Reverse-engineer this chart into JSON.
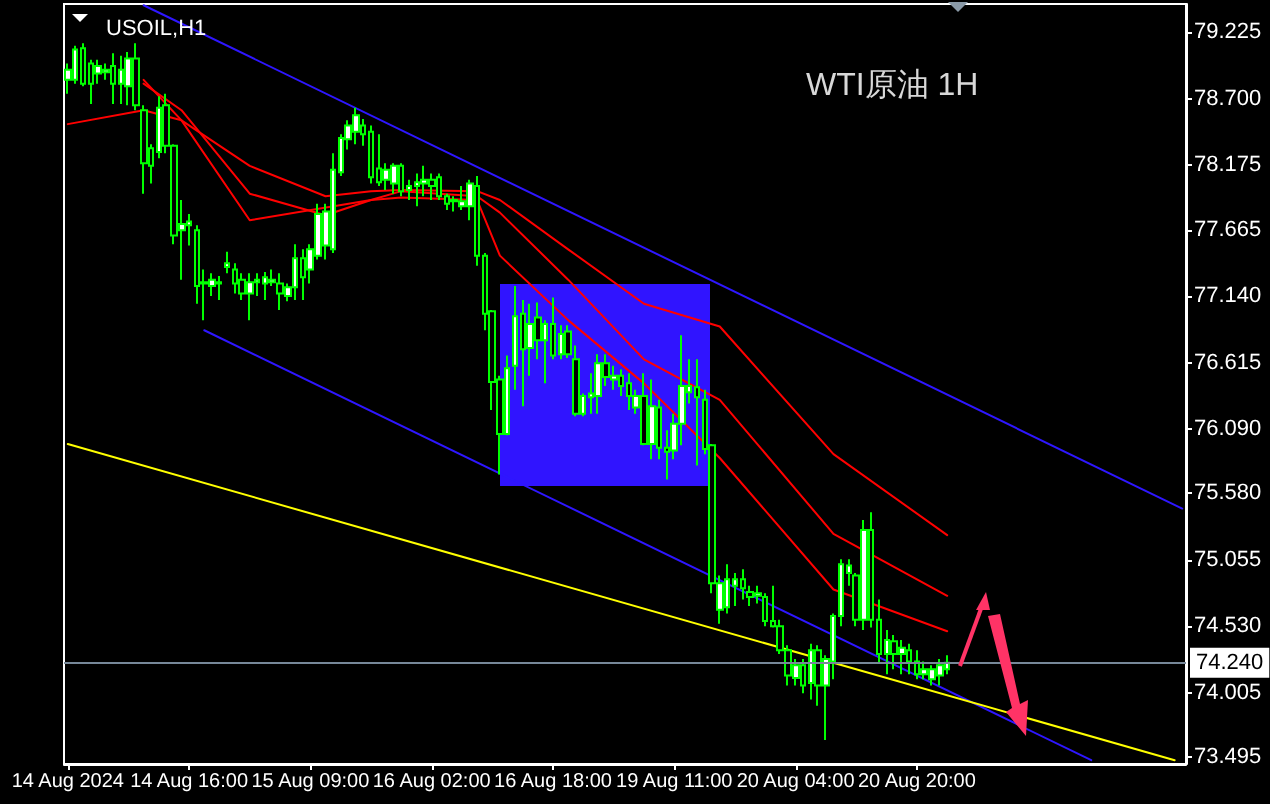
{
  "chart_data": {
    "type": "candlestick",
    "title": "WTI原油 1H",
    "subtitle": "USOIL,H1",
    "color": "#00ff00",
    "ylim": [
      73.44,
      79.45
    ],
    "categories": [
      "14 Aug 2024",
      null,
      null,
      null,
      null,
      null,
      null,
      null,
      null,
      null,
      null,
      null,
      null,
      null,
      null,
      null,
      "14 Aug 16:00",
      null,
      null,
      null,
      null,
      null,
      null,
      null,
      null,
      null,
      null,
      null,
      null,
      null,
      null,
      null,
      "15 Aug 09:00",
      null,
      null,
      null,
      null,
      null,
      null,
      null,
      null,
      null,
      null,
      null,
      null,
      null,
      null,
      null,
      "16 Aug 02:00",
      null,
      null,
      null,
      null,
      null,
      null,
      null,
      null,
      null,
      null,
      null,
      null,
      null,
      null,
      null,
      "16 Aug 18:00",
      null,
      null,
      null,
      null,
      null,
      null,
      null,
      null,
      null,
      null,
      null,
      null,
      null,
      null,
      null,
      "19 Aug 11:00",
      null,
      null,
      null,
      null,
      null,
      null,
      null,
      null,
      null,
      null,
      null,
      null,
      null,
      null,
      null,
      "20 Aug 04:00",
      null,
      null,
      null,
      null,
      null,
      null,
      null,
      null,
      null,
      null,
      null,
      null,
      null,
      null,
      null,
      "20 Aug 20:00",
      null,
      null,
      null,
      null,
      null,
      null,
      null,
      null,
      null,
      null,
      null,
      null,
      null,
      null,
      null,
      null,
      null,
      null,
      null,
      null,
      null,
      null,
      null,
      null,
      null,
      null,
      null,
      null,
      null,
      null,
      null,
      null,
      null,
      null,
      null
    ],
    "yticks": [
      79.225,
      {
        "value": 78.7,
        "label": "78.700"
      },
      78.175,
      77.665,
      {
        "value": 77.14,
        "label": "77.140"
      },
      76.615,
      {
        "value": 76.09,
        "label": "76.090"
      },
      {
        "value": 75.58,
        "label": "75.580"
      },
      75.055,
      {
        "value": 74.53,
        "label": "74.530"
      },
      74.005,
      73.495
    ],
    "ohlc": [
      [
        78.85,
        78.98,
        78.74,
        78.93
      ],
      [
        78.85,
        79.12,
        78.82,
        79.09
      ],
      [
        79.1,
        79.14,
        78.8,
        78.82
      ],
      [
        78.98,
        79.01,
        78.66,
        78.82
      ],
      [
        78.9,
        79.01,
        78.82,
        78.96
      ],
      [
        78.91,
        78.98,
        78.85,
        78.93
      ],
      [
        78.96,
        79.06,
        78.66,
        78.82
      ],
      [
        78.82,
        79.04,
        78.66,
        78.93
      ],
      [
        78.8,
        79.07,
        78.65,
        79.02
      ],
      [
        79.02,
        79.14,
        78.61,
        78.65
      ],
      [
        78.61,
        78.65,
        77.95,
        78.19
      ],
      [
        78.31,
        78.34,
        78.03,
        78.17
      ],
      [
        78.28,
        78.72,
        78.23,
        78.63
      ],
      [
        78.65,
        78.74,
        78.27,
        78.33
      ],
      [
        78.33,
        78.34,
        77.55,
        77.62
      ],
      [
        77.66,
        77.9,
        77.27,
        77.71
      ],
      [
        77.7,
        77.79,
        77.54,
        77.73
      ],
      [
        77.66,
        77.7,
        77.08,
        77.22
      ],
      [
        77.25,
        77.35,
        76.95,
        77.24
      ],
      [
        77.22,
        77.32,
        77.14,
        77.27
      ],
      [
        77.24,
        77.3,
        77.11,
        77.25
      ],
      [
        77.37,
        77.49,
        77.32,
        77.4
      ],
      [
        77.35,
        77.4,
        77.16,
        77.24
      ],
      [
        77.27,
        77.32,
        77.11,
        77.16
      ],
      [
        77.16,
        77.32,
        76.95,
        77.25
      ],
      [
        77.25,
        77.32,
        77.14,
        77.27
      ],
      [
        77.24,
        77.33,
        77.11,
        77.29
      ],
      [
        77.25,
        77.35,
        77.22,
        77.27
      ],
      [
        77.24,
        77.32,
        77.03,
        77.16
      ],
      [
        77.14,
        77.24,
        77.1,
        77.21
      ],
      [
        77.21,
        77.55,
        77.11,
        77.44
      ],
      [
        77.44,
        77.51,
        77.11,
        77.29
      ],
      [
        77.35,
        77.55,
        77.24,
        77.51
      ],
      [
        77.46,
        77.87,
        77.43,
        77.79
      ],
      [
        77.54,
        77.87,
        77.43,
        77.81
      ],
      [
        77.51,
        78.27,
        77.48,
        78.14
      ],
      [
        78.12,
        78.42,
        78.09,
        78.39
      ],
      [
        78.38,
        78.53,
        78.3,
        78.49
      ],
      [
        78.44,
        78.63,
        78.34,
        78.57
      ],
      [
        78.49,
        78.54,
        78.33,
        78.42
      ],
      [
        78.44,
        78.49,
        78.03,
        78.08
      ],
      [
        78.15,
        78.42,
        78.01,
        78.04
      ],
      [
        78.06,
        78.19,
        77.98,
        78.14
      ],
      [
        78.03,
        78.19,
        77.95,
        78.17
      ],
      [
        78.17,
        78.19,
        77.93,
        77.97
      ],
      [
        77.98,
        78.06,
        77.9,
        78.01
      ],
      [
        78.01,
        78.11,
        77.85,
        78.04
      ],
      [
        78.03,
        78.17,
        77.93,
        78.06
      ],
      [
        78.06,
        78.11,
        77.9,
        78.01
      ],
      [
        78.08,
        78.11,
        77.9,
        77.93
      ],
      [
        77.93,
        77.95,
        77.82,
        77.87
      ],
      [
        77.89,
        77.93,
        77.81,
        77.9
      ],
      [
        77.85,
        78.01,
        77.82,
        77.89
      ],
      [
        77.85,
        78.06,
        77.74,
        78.03
      ],
      [
        78.01,
        78.09,
        77.38,
        77.46
      ],
      [
        77.46,
        77.48,
        76.87,
        77.0
      ],
      [
        77.02,
        77.03,
        76.24,
        76.46
      ],
      [
        76.48,
        76.51,
        75.73,
        76.05
      ],
      [
        76.05,
        76.67,
        76.04,
        76.57
      ],
      [
        76.59,
        77.22,
        76.4,
        76.98
      ],
      [
        77.0,
        77.11,
        76.27,
        76.72
      ],
      [
        76.73,
        77.08,
        76.51,
        76.92
      ],
      [
        76.97,
        77.09,
        76.64,
        76.79
      ],
      [
        76.79,
        76.95,
        76.45,
        76.92
      ],
      [
        76.92,
        77.13,
        76.64,
        76.67
      ],
      [
        76.68,
        76.91,
        76.64,
        76.84
      ],
      [
        76.86,
        76.91,
        76.65,
        76.68
      ],
      [
        76.64,
        76.75,
        76.19,
        76.21
      ],
      [
        76.21,
        76.37,
        76.19,
        76.35
      ],
      [
        76.34,
        76.53,
        76.21,
        76.37
      ],
      [
        76.35,
        76.68,
        76.21,
        76.61
      ],
      [
        76.61,
        76.68,
        76.43,
        76.5
      ],
      [
        76.48,
        76.59,
        76.4,
        76.51
      ],
      [
        76.51,
        76.56,
        76.35,
        76.43
      ],
      [
        76.45,
        76.53,
        76.24,
        76.35
      ],
      [
        76.26,
        76.4,
        76.21,
        76.35
      ],
      [
        76.35,
        76.53,
        75.96,
        75.97
      ],
      [
        75.97,
        76.48,
        75.85,
        76.27
      ],
      [
        76.26,
        76.32,
        75.85,
        75.94
      ],
      [
        75.94,
        76.08,
        75.69,
        75.91
      ],
      [
        75.92,
        76.21,
        75.85,
        76.13
      ],
      [
        76.13,
        76.83,
        75.96,
        76.43
      ],
      [
        76.38,
        76.64,
        76.29,
        76.43
      ],
      [
        76.42,
        76.64,
        75.8,
        76.34
      ],
      [
        76.32,
        76.4,
        75.89,
        75.93
      ],
      [
        75.96,
        75.97,
        74.79,
        74.87
      ],
      [
        74.66,
        74.93,
        74.55,
        74.87
      ],
      [
        74.68,
        75.02,
        74.63,
        74.9
      ],
      [
        74.85,
        74.95,
        74.69,
        74.9
      ],
      [
        74.9,
        74.98,
        74.74,
        74.83
      ],
      [
        74.8,
        74.85,
        74.69,
        74.76
      ],
      [
        74.77,
        74.85,
        74.71,
        74.79
      ],
      [
        74.76,
        74.79,
        74.53,
        74.57
      ],
      [
        74.57,
        74.85,
        74.52,
        74.53
      ],
      [
        74.53,
        74.58,
        74.31,
        74.34
      ],
      [
        74.34,
        74.38,
        74.06,
        74.14
      ],
      [
        74.12,
        74.27,
        74.06,
        74.22
      ],
      [
        74.22,
        74.27,
        74.0,
        74.06
      ],
      [
        74.08,
        74.39,
        73.95,
        74.34
      ],
      [
        74.34,
        74.38,
        73.9,
        74.06
      ],
      [
        74.06,
        74.3,
        73.63,
        74.27
      ],
      [
        74.25,
        74.63,
        74.11,
        74.61
      ],
      [
        74.61,
        75.06,
        74.53,
        75.02
      ],
      [
        74.95,
        75.06,
        74.85,
        75.01
      ],
      [
        74.93,
        74.95,
        74.53,
        74.58
      ],
      [
        74.58,
        75.37,
        74.5,
        75.29
      ],
      [
        75.29,
        75.43,
        74.52,
        74.58
      ],
      [
        74.58,
        74.74,
        74.23,
        74.31
      ],
      [
        74.31,
        74.5,
        74.15,
        74.42
      ],
      [
        74.41,
        74.46,
        74.19,
        74.31
      ],
      [
        74.31,
        74.42,
        74.15,
        74.36
      ],
      [
        74.34,
        74.39,
        74.15,
        74.25
      ],
      [
        74.25,
        74.34,
        74.11,
        74.15
      ],
      [
        74.15,
        74.25,
        74.11,
        74.19
      ],
      [
        74.11,
        74.22,
        74.06,
        74.19
      ],
      [
        74.14,
        74.27,
        74.06,
        74.22
      ],
      [
        74.19,
        74.3,
        74.15,
        74.24
      ],
      null,
      null,
      null,
      null,
      null,
      null,
      null,
      null,
      null,
      null,
      null,
      null,
      null,
      null,
      null,
      null,
      null,
      null,
      null,
      null,
      null,
      null,
      null,
      null,
      null,
      null,
      null,
      null,
      null,
      null,
      null
    ],
    "series": [
      {
        "type": "line",
        "color": "#ff0000",
        "values": [
          78.5,
          null,
          null,
          null,
          null,
          null,
          null,
          null,
          null,
          null,
          78.61,
          null,
          null,
          null,
          null,
          78.53,
          null,
          null,
          null,
          null,
          null,
          null,
          null,
          null,
          78.17,
          null,
          null,
          null,
          null,
          null,
          null,
          null,
          null,
          null,
          77.93,
          null,
          null,
          null,
          null,
          null,
          77.97,
          null,
          null,
          null,
          77.98,
          null,
          null,
          null,
          null,
          null,
          null,
          null,
          null,
          null,
          77.97,
          null,
          null,
          77.9,
          null,
          null,
          null,
          null,
          null,
          null,
          null,
          null,
          77.51,
          null,
          null,
          null,
          null,
          null,
          null,
          null,
          null,
          null,
          77.08,
          null,
          null,
          null,
          null,
          null,
          null,
          null,
          null,
          null,
          76.9,
          null,
          null,
          null,
          null,
          null,
          null,
          null,
          null,
          null,
          null,
          null,
          null,
          null,
          null,
          75.89,
          null,
          null,
          null,
          null,
          null,
          null,
          null,
          null,
          null,
          null,
          null,
          null,
          null,
          null,
          75.25,
          null,
          null,
          null,
          null,
          null,
          null,
          null,
          null,
          null,
          null,
          null,
          null,
          null,
          null,
          null,
          null,
          null,
          null,
          null,
          null,
          null,
          null,
          null,
          null,
          null,
          null,
          null,
          null,
          null,
          null,
          null
        ]
      },
      {
        "type": "line",
        "color": "#ff0000",
        "values": [
          null,
          null,
          null,
          null,
          null,
          null,
          null,
          null,
          null,
          null,
          78.82,
          null,
          null,
          null,
          null,
          78.61,
          null,
          null,
          null,
          null,
          null,
          null,
          null,
          null,
          77.95,
          null,
          null,
          null,
          null,
          null,
          null,
          null,
          null,
          null,
          77.78,
          null,
          null,
          null,
          null,
          null,
          77.9,
          null,
          null,
          null,
          77.97,
          null,
          null,
          null,
          null,
          null,
          null,
          null,
          null,
          null,
          77.93,
          null,
          null,
          77.8,
          null,
          null,
          null,
          null,
          null,
          null,
          null,
          null,
          77.27,
          null,
          null,
          null,
          null,
          null,
          null,
          null,
          null,
          null,
          76.64,
          null,
          null,
          null,
          null,
          null,
          null,
          null,
          null,
          null,
          76.32,
          null,
          null,
          null,
          null,
          null,
          null,
          null,
          null,
          null,
          null,
          null,
          null,
          null,
          null,
          75.26,
          null,
          null,
          null,
          null,
          null,
          null,
          null,
          null,
          null,
          null,
          null,
          null,
          null,
          null,
          74.77,
          null,
          null,
          null,
          null,
          null,
          null,
          null,
          null,
          null,
          null,
          null,
          null,
          null,
          null,
          null,
          null,
          null,
          null,
          null,
          null,
          null,
          null,
          null,
          null,
          null,
          null,
          null,
          null,
          null,
          null,
          null
        ]
      },
      {
        "type": "line",
        "color": "#ff0000",
        "values": [
          null,
          null,
          null,
          null,
          null,
          null,
          null,
          null,
          null,
          null,
          78.85,
          null,
          null,
          null,
          null,
          78.53,
          null,
          null,
          null,
          null,
          null,
          null,
          null,
          null,
          77.74,
          null,
          null,
          null,
          null,
          null,
          null,
          null,
          null,
          null,
          null,
          null,
          null,
          null,
          null,
          null,
          77.9,
          null,
          null,
          null,
          77.92,
          null,
          null,
          null,
          null,
          null,
          null,
          null,
          null,
          null,
          77.9,
          null,
          null,
          77.46,
          null,
          null,
          null,
          null,
          null,
          null,
          null,
          null,
          76.95,
          null,
          null,
          null,
          null,
          null,
          null,
          null,
          null,
          null,
          76.45,
          null,
          null,
          null,
          null,
          null,
          null,
          null,
          null,
          null,
          75.86,
          null,
          null,
          null,
          null,
          null,
          null,
          null,
          null,
          null,
          null,
          null,
          null,
          null,
          null,
          74.82,
          null,
          null,
          null,
          null,
          null,
          null,
          null,
          null,
          null,
          null,
          null,
          null,
          null,
          null,
          74.49,
          null,
          null,
          null,
          null,
          null,
          null,
          null,
          null,
          null,
          null,
          null,
          null,
          null,
          null,
          null,
          null,
          null,
          null,
          null,
          null,
          null,
          null,
          null,
          null,
          null,
          null,
          null,
          null,
          null,
          null,
          null
        ]
      },
      {
        "type": "line",
        "color": "#2e16ff",
        "values": [
          null,
          null,
          null,
          null,
          null,
          null,
          null,
          null,
          null,
          null,
          79.44,
          null,
          null,
          null,
          null,
          null,
          null,
          null,
          null,
          null,
          null,
          null,
          null,
          null,
          null,
          null,
          null,
          null,
          null,
          null,
          null,
          null,
          null,
          null,
          null,
          null,
          null,
          null,
          null,
          null,
          null,
          null,
          null,
          null,
          null,
          null,
          null,
          null,
          null,
          null,
          null,
          null,
          null,
          null,
          null,
          null,
          null,
          null,
          null,
          null,
          null,
          null,
          null,
          null,
          null,
          null,
          null,
          null,
          null,
          null,
          null,
          null,
          null,
          null,
          null,
          null,
          null,
          null,
          null,
          null,
          null,
          null,
          null,
          null,
          null,
          null,
          null,
          null,
          null,
          null,
          null,
          null,
          null,
          null,
          null,
          null,
          null,
          null,
          null,
          null,
          null,
          null,
          null,
          null,
          null,
          null,
          null,
          null,
          null,
          null,
          null,
          null,
          null,
          null,
          null,
          null,
          null,
          null,
          null,
          null,
          null,
          null,
          null,
          null,
          null,
          null,
          null,
          null,
          null,
          null,
          null,
          null,
          null,
          null,
          null,
          null,
          null,
          null,
          null,
          null,
          null,
          null,
          null,
          null,
          null,
          null,
          null,
          75.46
        ]
      },
      {
        "type": "line",
        "color": "#2e16ff",
        "values": [
          null,
          null,
          null,
          null,
          null,
          null,
          null,
          null,
          null,
          null,
          null,
          null,
          null,
          null,
          null,
          null,
          null,
          null,
          76.87,
          null,
          null,
          null,
          null,
          null,
          null,
          null,
          null,
          null,
          null,
          null,
          null,
          null,
          null,
          null,
          null,
          null,
          null,
          null,
          null,
          null,
          null,
          null,
          null,
          null,
          null,
          null,
          null,
          null,
          null,
          null,
          null,
          null,
          null,
          null,
          null,
          null,
          null,
          null,
          null,
          null,
          null,
          null,
          null,
          null,
          null,
          null,
          null,
          null,
          null,
          null,
          null,
          null,
          null,
          null,
          null,
          null,
          null,
          null,
          null,
          null,
          null,
          null,
          null,
          null,
          null,
          null,
          null,
          null,
          null,
          null,
          null,
          null,
          null,
          null,
          null,
          null,
          null,
          null,
          null,
          null,
          null,
          null,
          null,
          null,
          null,
          null,
          null,
          null,
          null,
          null,
          null,
          null,
          null,
          null,
          null,
          null,
          null,
          null,
          null,
          null,
          null,
          null,
          null,
          null,
          null,
          null,
          null,
          null,
          null,
          null,
          null,
          null,
          null,
          null,
          null,
          73.47,
          null,
          null,
          null,
          null,
          null,
          null,
          null,
          null,
          null,
          null,
          null,
          null
        ]
      },
      {
        "type": "line",
        "color": "#ffff00",
        "values": [
          75.97,
          null,
          null,
          null,
          null,
          null,
          null,
          null,
          null,
          null,
          null,
          null,
          null,
          null,
          null,
          null,
          null,
          null,
          null,
          null,
          null,
          null,
          null,
          null,
          null,
          null,
          null,
          null,
          null,
          null,
          null,
          null,
          null,
          null,
          null,
          null,
          null,
          null,
          null,
          null,
          null,
          null,
          null,
          null,
          null,
          null,
          null,
          null,
          null,
          null,
          null,
          null,
          null,
          null,
          null,
          null,
          null,
          null,
          null,
          null,
          null,
          null,
          null,
          null,
          null,
          null,
          null,
          null,
          null,
          null,
          null,
          null,
          null,
          null,
          null,
          null,
          null,
          null,
          null,
          null,
          null,
          null,
          null,
          null,
          null,
          null,
          null,
          null,
          null,
          null,
          null,
          null,
          null,
          null,
          null,
          null,
          null,
          null,
          null,
          null,
          null,
          null,
          null,
          null,
          null,
          null,
          null,
          null,
          null,
          null,
          null,
          null,
          null,
          null,
          null,
          null,
          null,
          null,
          null,
          null,
          null,
          null,
          null,
          null,
          null,
          null,
          null,
          null,
          null,
          null,
          null,
          null,
          null,
          null,
          null,
          null,
          null,
          null,
          null,
          null,
          null,
          null,
          null,
          null,
          null,
          null,
          73.47,
          null
        ]
      }
    ],
    "ref_lines": [
      {
        "axis": "y",
        "value": 74.24,
        "label": "74.240",
        "color": "#778899"
      }
    ]
  }
}
